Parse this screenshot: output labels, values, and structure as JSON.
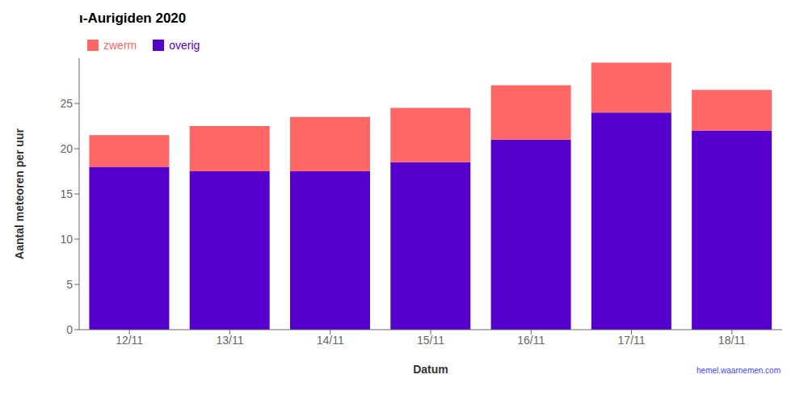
{
  "chart_data": {
    "type": "bar",
    "title": "ι-Aurigiden 2020",
    "xlabel": "Datum",
    "ylabel": "Aantal meteoren per uur",
    "categories": [
      "12/11",
      "13/11",
      "14/11",
      "15/11",
      "16/11",
      "17/11",
      "18/11"
    ],
    "series": [
      {
        "name": "overig",
        "color": "#5500cc",
        "values": [
          18.0,
          17.5,
          17.5,
          18.5,
          21.0,
          24.0,
          22.0
        ]
      },
      {
        "name": "zwerm",
        "color": "#ff6666",
        "values": [
          3.5,
          5.0,
          6.0,
          6.0,
          6.0,
          5.5,
          4.5
        ]
      }
    ],
    "stacked": true,
    "ylim": [
      0,
      30
    ],
    "yticks": [
      0,
      5,
      10,
      15,
      20,
      25
    ],
    "grid": false,
    "legend": "upper left",
    "annotations": [
      "hemel.waarnemen.com"
    ]
  }
}
